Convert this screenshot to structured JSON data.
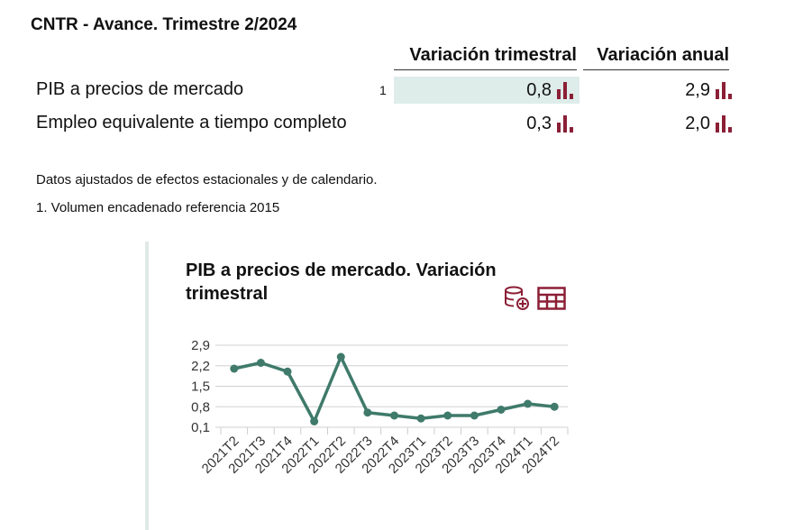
{
  "header": {
    "title": "CNTR - Avance. Trimestre 2/2024"
  },
  "table": {
    "columns": [
      "Variación trimestral",
      "Variación anual"
    ],
    "rows": [
      {
        "label": "PIB a precios de mercado",
        "note": "1",
        "quarterly": "0,8",
        "annual": "2,9",
        "highlight": true
      },
      {
        "label": "Empleo equivalente a tiempo completo",
        "note": "",
        "quarterly": "0,3",
        "annual": "2,0",
        "highlight": false
      }
    ]
  },
  "notes": [
    "Datos ajustados de efectos estacionales y de calendario.",
    "1. Volumen encadenado referencia 2015"
  ],
  "colors": {
    "line": "#3f7a6a",
    "icon": "#8b1f36",
    "highlight": "#deecea"
  },
  "icons": [
    "database-add-icon",
    "table-icon",
    "bar-chart-icon"
  ],
  "chart_data": {
    "type": "line",
    "title": "PIB a precios de mercado. Variación trimestral",
    "categories": [
      "2021T2",
      "2021T3",
      "2021T4",
      "2022T1",
      "2022T2",
      "2022T3",
      "2022T4",
      "2023T1",
      "2023T2",
      "2023T3",
      "2023T4",
      "2024T1",
      "2024T2"
    ],
    "values": [
      2.1,
      2.3,
      2.0,
      0.3,
      2.5,
      0.6,
      0.5,
      0.4,
      0.5,
      0.5,
      0.7,
      0.9,
      0.8
    ],
    "yticks": [
      "0,1",
      "0,8",
      "1,5",
      "2,2",
      "2,9"
    ],
    "ylim": [
      0.1,
      2.9
    ],
    "grid": true
  }
}
